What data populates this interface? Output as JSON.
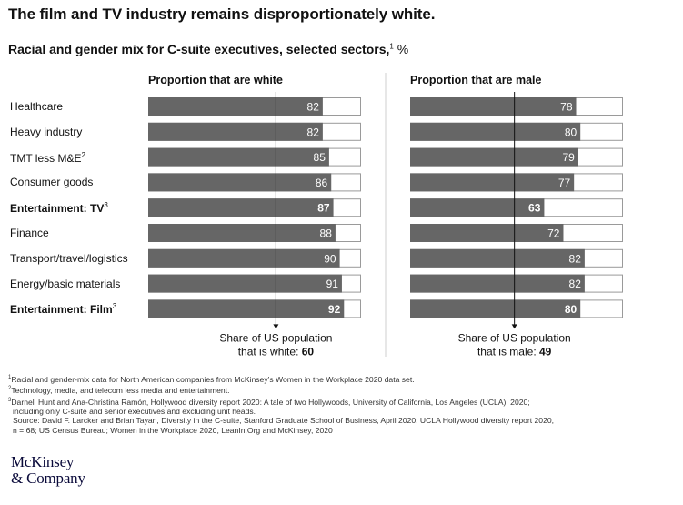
{
  "title": "The film and TV industry remains disproportionately white.",
  "subtitle": {
    "text": "Racial and gender mix for C-suite executives, selected sectors,",
    "footnote": "1",
    "unit": "%"
  },
  "chart_data": {
    "type": "bar",
    "orientation": "horizontal",
    "stacked_100": true,
    "categories": [
      {
        "label": "Healthcare",
        "footnote": "",
        "highlight": false
      },
      {
        "label": "Heavy industry",
        "footnote": "",
        "highlight": false
      },
      {
        "label": "TMT less M&E",
        "footnote": "2",
        "highlight": false
      },
      {
        "label": "Consumer goods",
        "footnote": "",
        "highlight": false
      },
      {
        "label": "Entertainment: TV",
        "footnote": "3",
        "highlight": true
      },
      {
        "label": "Finance",
        "footnote": "",
        "highlight": false
      },
      {
        "label": "Transport/travel/logistics",
        "footnote": "",
        "highlight": false
      },
      {
        "label": "Energy/basic materials",
        "footnote": "",
        "highlight": false
      },
      {
        "label": "Entertainment: Film",
        "footnote": "3",
        "highlight": true
      }
    ],
    "panels": [
      {
        "title": "Proportion that are white",
        "values": [
          82,
          82,
          85,
          86,
          87,
          88,
          90,
          91,
          92
        ],
        "reference": {
          "value": 60,
          "label_line1": "Share of US population",
          "label_line2": "that is white: ",
          "label_value": "60"
        }
      },
      {
        "title": "Proportion that are male",
        "values": [
          78,
          80,
          79,
          77,
          63,
          72,
          82,
          82,
          80
        ],
        "reference": {
          "value": 49,
          "label_line1": "Share of US population",
          "label_line2": "that is male: ",
          "label_value": "49"
        }
      }
    ],
    "xlim": [
      0,
      100
    ],
    "colors": {
      "bar": "#666666",
      "bar_outline": "#9a9a9a",
      "reference_line": "#111111",
      "bar_label": "#ffffff"
    }
  },
  "footnotes": [
    {
      "mark": "1",
      "text": "Racial and gender-mix data for North American companies from McKinsey’s Women in the Workplace 2020 data set."
    },
    {
      "mark": "2",
      "text": "Technology, media, and telecom less media and entertainment."
    },
    {
      "mark": "3",
      "text": "Darnell Hunt and Ana-Christina Ramón, Hollywood diversity report 2020: A tale of two Hollywoods, University of California, Los Angeles (UCLA), 2020;"
    },
    {
      "mark": "",
      "text": "including only C-suite and senior executives and excluding unit heads."
    },
    {
      "mark": "",
      "text": "Source: David F. Larcker and Brian Tayan, Diversity in the C-suite, Stanford Graduate School of Business, April 2020; UCLA Hollywood diversity report 2020,"
    },
    {
      "mark": "",
      "text": "n = 68; US Census Bureau; Women in the Workplace 2020, LeanIn.Org and McKinsey, 2020"
    }
  ],
  "logo": {
    "line1": "McKinsey",
    "line2": "& Company"
  }
}
